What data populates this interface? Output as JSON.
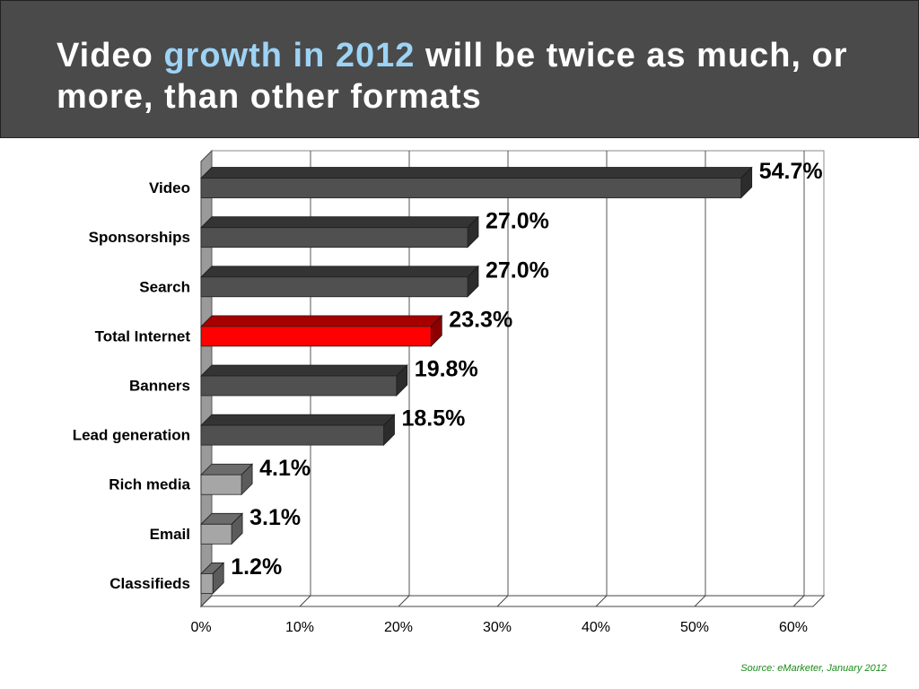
{
  "chart_data": {
    "type": "bar3d",
    "title_segments": [
      "Video",
      "growth in 2012",
      "will be twice as much, or more, than other formats"
    ],
    "title_highlight_color": "#9dd3f5",
    "categories": [
      "Video",
      "Sponsorships",
      "Search",
      "Total Internet",
      "Banners",
      "Lead generation",
      "Rich media",
      "Email",
      "Classifieds"
    ],
    "values": [
      54.7,
      27.0,
      27.0,
      23.3,
      19.8,
      18.5,
      4.1,
      3.1,
      1.2
    ],
    "value_labels": [
      "54.7%",
      "27.0%",
      "27.0%",
      "23.3%",
      "19.8%",
      "18.5%",
      "4.1%",
      "3.1%",
      "1.2%"
    ],
    "colors": [
      "#505050",
      "#505050",
      "#505050",
      "#ff0000",
      "#505050",
      "#505050",
      "#a6a6a6",
      "#a6a6a6",
      "#a6a6a6"
    ],
    "xlim": [
      0,
      62
    ],
    "xticks": [
      {
        "value": 0,
        "label": "0%"
      },
      {
        "value": 10,
        "label": "10%"
      },
      {
        "value": 20,
        "label": "20%"
      },
      {
        "value": 30,
        "label": "30%"
      },
      {
        "value": 40,
        "label": "40%"
      },
      {
        "value": 50,
        "label": "50%"
      },
      {
        "value": 60,
        "label": "60%"
      }
    ],
    "grid": true,
    "source": "Source: eMarketer, January 2012"
  }
}
